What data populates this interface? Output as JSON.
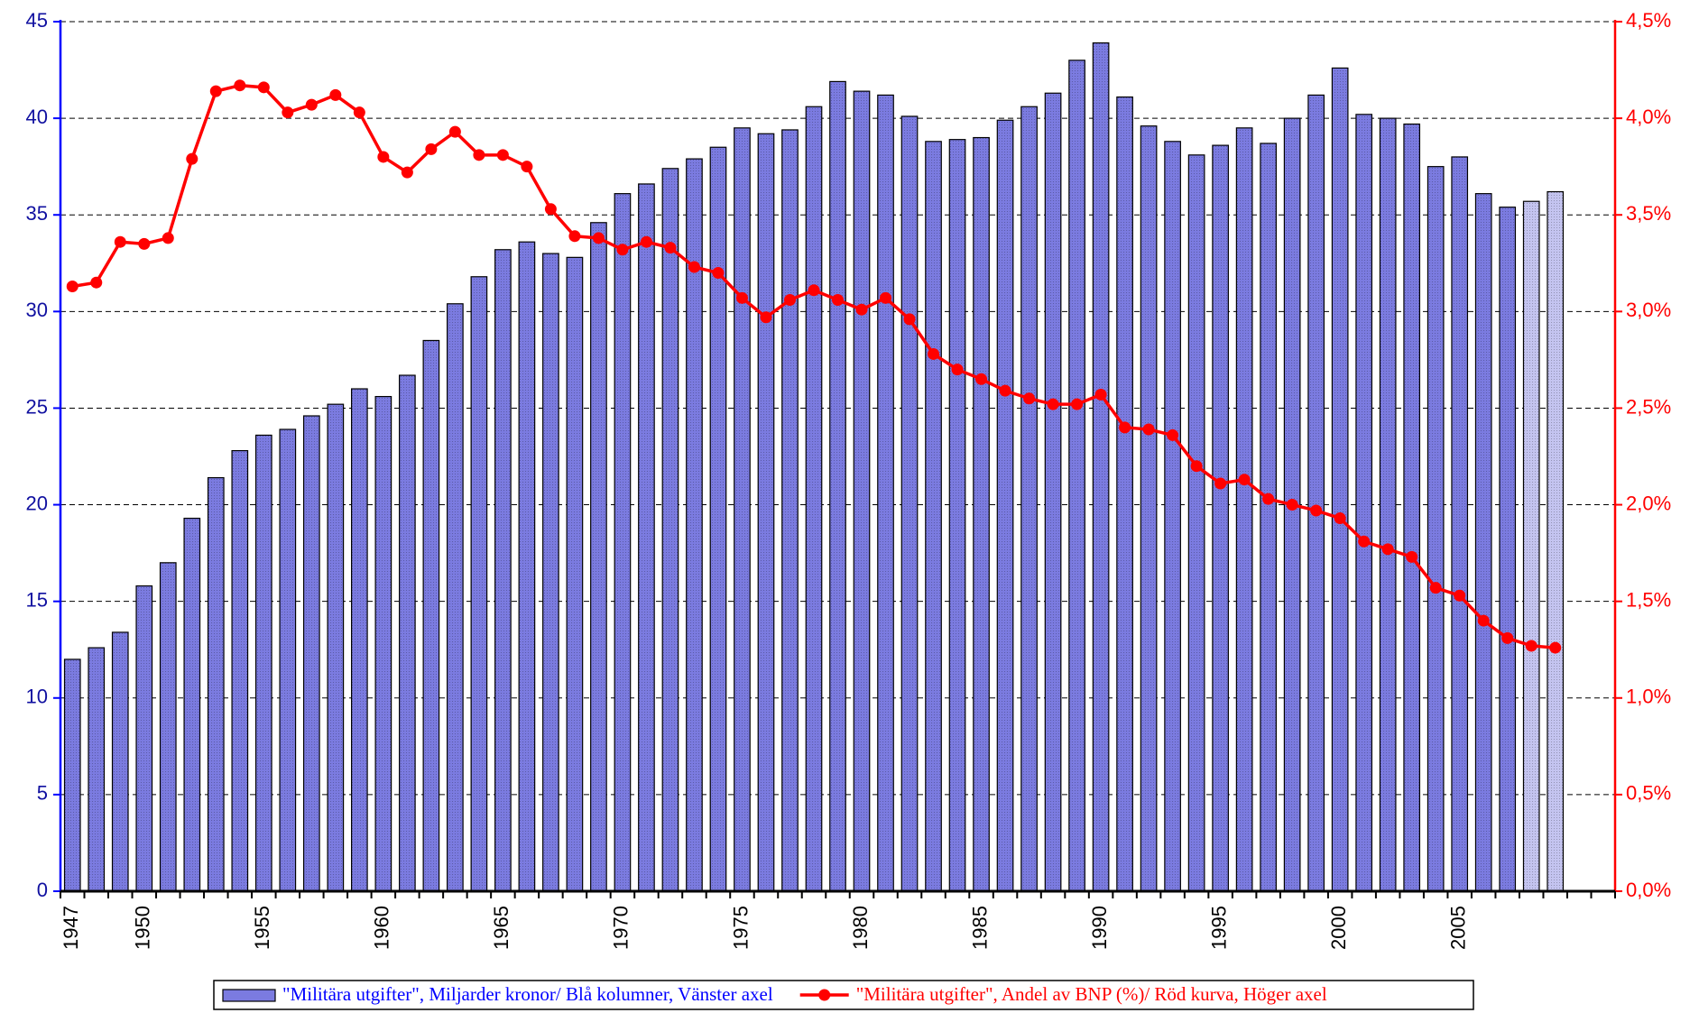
{
  "chart_data": {
    "type": "bar",
    "categories": [
      1947,
      null,
      null,
      1950,
      null,
      null,
      null,
      null,
      1955,
      null,
      null,
      null,
      null,
      1960,
      null,
      null,
      null,
      null,
      1965,
      null,
      null,
      null,
      null,
      1970,
      null,
      null,
      null,
      null,
      1975,
      null,
      null,
      null,
      null,
      1980,
      null,
      null,
      null,
      null,
      1985,
      null,
      null,
      null,
      null,
      1990,
      null,
      null,
      null,
      null,
      1995,
      null,
      null,
      null,
      null,
      2000,
      null,
      null,
      null,
      null,
      2005,
      null,
      null,
      null,
      null
    ],
    "series": [
      {
        "name": "\"Militära utgifter\", Miljarder kronor/ Blå kolumner, Vänster axel",
        "type": "bar",
        "color": "#7b7be0",
        "colors": [
          "#7b7be0",
          "#7b7be0",
          "#7b7be0",
          "#7b7be0",
          "#7b7be0",
          "#7b7be0",
          "#7b7be0",
          "#7b7be0",
          "#7b7be0",
          "#7b7be0",
          "#7b7be0",
          "#7b7be0",
          "#7b7be0",
          "#7b7be0",
          "#7b7be0",
          "#7b7be0",
          "#7b7be0",
          "#7b7be0",
          "#7b7be0",
          "#7b7be0",
          "#7b7be0",
          "#7b7be0",
          "#7b7be0",
          "#7b7be0",
          "#7b7be0",
          "#7b7be0",
          "#7b7be0",
          "#7b7be0",
          "#7b7be0",
          "#7b7be0",
          "#7b7be0",
          "#7b7be0",
          "#7b7be0",
          "#7b7be0",
          "#7b7be0",
          "#7b7be0",
          "#7b7be0",
          "#7b7be0",
          "#7b7be0",
          "#7b7be0",
          "#7b7be0",
          "#7b7be0",
          "#7b7be0",
          "#7b7be0",
          "#7b7be0",
          "#7b7be0",
          "#7b7be0",
          "#7b7be0",
          "#7b7be0",
          "#7b7be0",
          "#7b7be0",
          "#7b7be0",
          "#7b7be0",
          "#7b7be0",
          "#7b7be0",
          "#7b7be0",
          "#7b7be0",
          "#7b7be0",
          "#7b7be0",
          "#7b7be0",
          "#7b7be0",
          "#c4c4f0",
          "#c4c4f0"
        ],
        "values": [
          12.0,
          12.6,
          13.4,
          15.8,
          17.0,
          19.3,
          21.4,
          22.8,
          23.6,
          23.9,
          24.6,
          25.2,
          26.0,
          25.6,
          26.7,
          28.5,
          30.4,
          31.8,
          33.2,
          33.6,
          33.0,
          32.8,
          34.6,
          36.1,
          36.6,
          37.4,
          37.9,
          38.5,
          39.5,
          39.2,
          39.4,
          40.6,
          41.9,
          41.4,
          41.2,
          40.1,
          38.8,
          38.9,
          39.0,
          39.9,
          40.6,
          41.3,
          43.0,
          43.9,
          41.1,
          39.6,
          38.8,
          38.1,
          38.6,
          39.5,
          38.7,
          40.0,
          41.2,
          42.6,
          40.2,
          40.0,
          39.7,
          37.5,
          38.0,
          36.1,
          35.4,
          35.7,
          36.2
        ]
      },
      {
        "name": "\"Militära utgifter\", Andel av BNP (%)/ Röd kurva, Höger axel",
        "type": "line",
        "axis": "y2",
        "color": "#ff0000",
        "values": [
          3.13,
          3.15,
          3.36,
          3.35,
          3.38,
          3.79,
          4.14,
          4.17,
          4.16,
          4.03,
          4.07,
          4.12,
          4.03,
          3.8,
          3.72,
          3.84,
          3.93,
          3.81,
          3.81,
          3.75,
          3.53,
          3.39,
          3.38,
          3.32,
          3.36,
          3.33,
          3.23,
          3.2,
          3.07,
          2.97,
          3.06,
          3.11,
          3.06,
          3.01,
          3.07,
          2.96,
          2.78,
          2.7,
          2.65,
          2.59,
          2.55,
          2.52,
          2.52,
          2.57,
          2.4,
          2.39,
          2.36,
          2.2,
          2.11,
          2.13,
          2.03,
          2.0,
          1.97,
          1.93,
          1.81,
          1.77,
          1.73,
          1.57,
          1.53,
          1.4,
          1.31,
          1.27,
          1.26
        ]
      }
    ],
    "ylim": [
      0,
      45
    ],
    "yticks": [
      0,
      5,
      10,
      15,
      20,
      25,
      30,
      35,
      40,
      45
    ],
    "y2lim": [
      0,
      4.5
    ],
    "y2ticks": [
      {
        "value": 0,
        "label": "0,0%"
      },
      {
        "value": 0.5,
        "label": "0,5%"
      },
      {
        "value": 1,
        "label": "1,0%"
      },
      {
        "value": 1.5,
        "label": "1,5%"
      },
      {
        "value": 2,
        "label": "2,0%"
      },
      {
        "value": 2.5,
        "label": "2,5%"
      },
      {
        "value": 3,
        "label": "3,0%"
      },
      {
        "value": 3.5,
        "label": "3,5%"
      },
      {
        "value": 4,
        "label": "4,0%"
      },
      {
        "value": 4.5,
        "label": "4,5%"
      }
    ],
    "grid": true,
    "legend": "bottom"
  }
}
